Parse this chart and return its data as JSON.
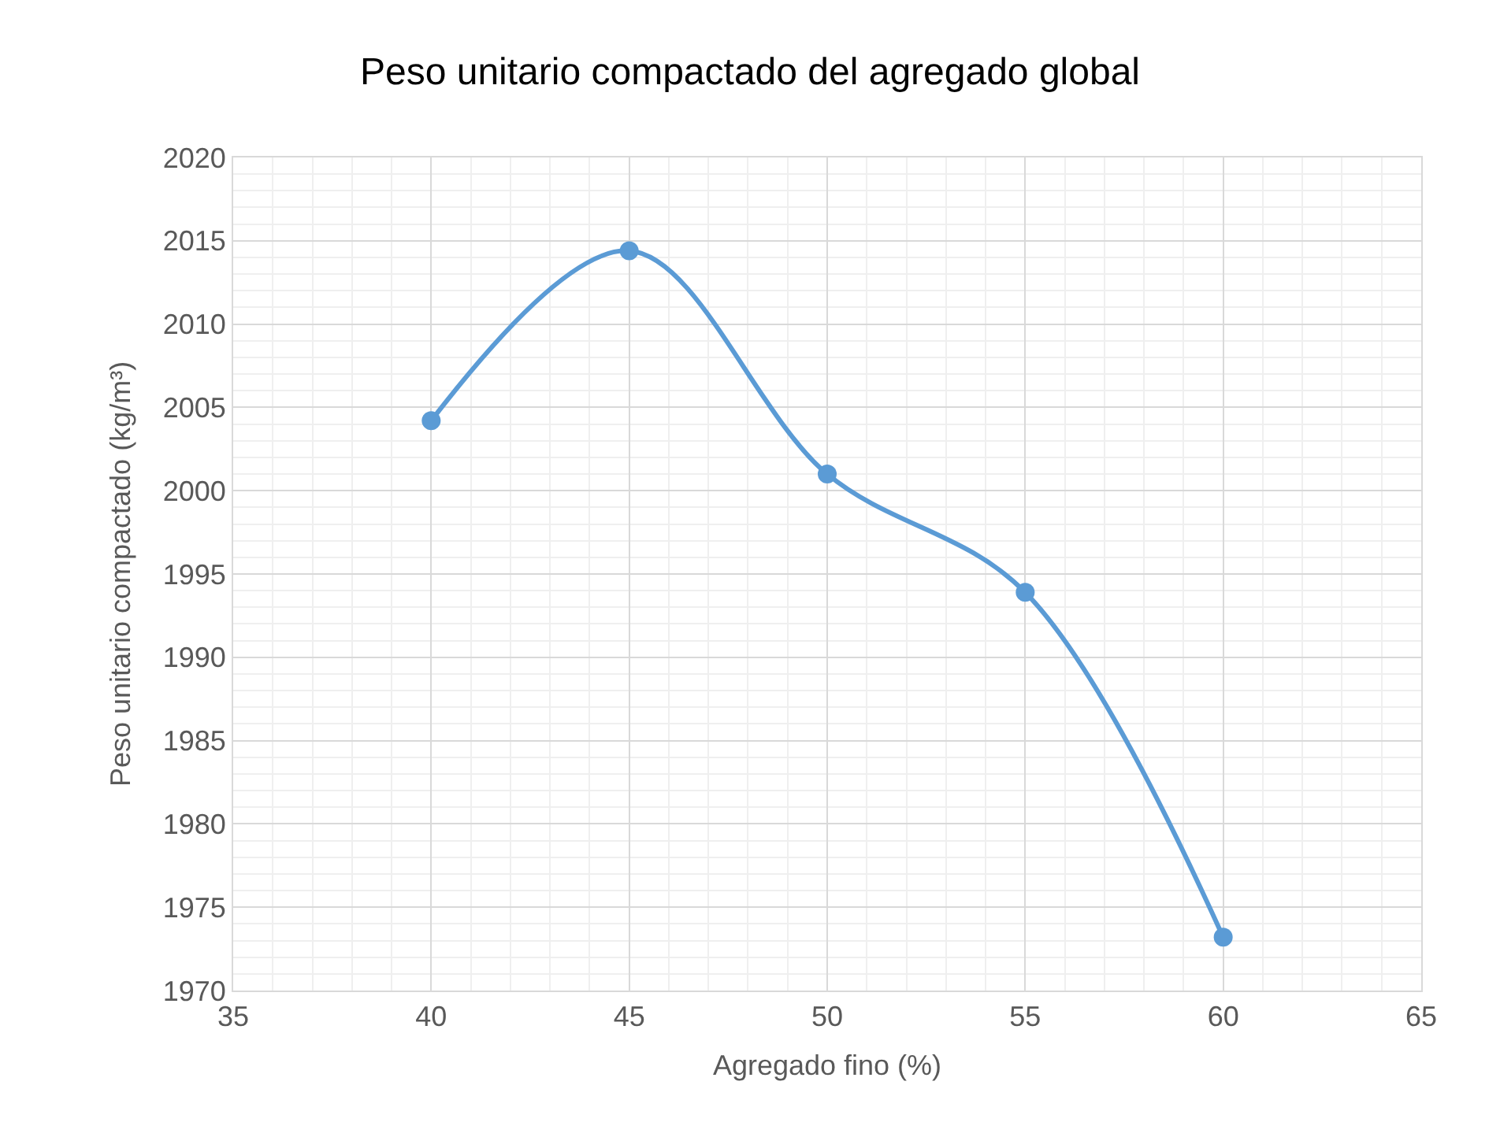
{
  "chart_data": {
    "type": "line",
    "title": "Peso unitario compactado del agregado global",
    "xlabel": "Agregado fino (%)",
    "ylabel": "Peso unitario compactado (kg/m³)",
    "x": [
      40,
      45,
      50,
      55,
      60
    ],
    "series": [
      {
        "color": "#5b9bd5",
        "values": [
          2004.2,
          2014.4,
          2001.0,
          1993.9,
          1973.2
        ]
      }
    ],
    "xlim": [
      35,
      65
    ],
    "xticks": [
      35,
      40,
      45,
      50,
      55,
      60,
      65
    ],
    "ylim": [
      1970,
      2020
    ],
    "yticks": [
      1970,
      1975,
      1980,
      1985,
      1990,
      1995,
      2000,
      2005,
      2010,
      2015,
      2020
    ],
    "grid": true,
    "marker": "circle",
    "line_style": "solid",
    "legend": false
  }
}
